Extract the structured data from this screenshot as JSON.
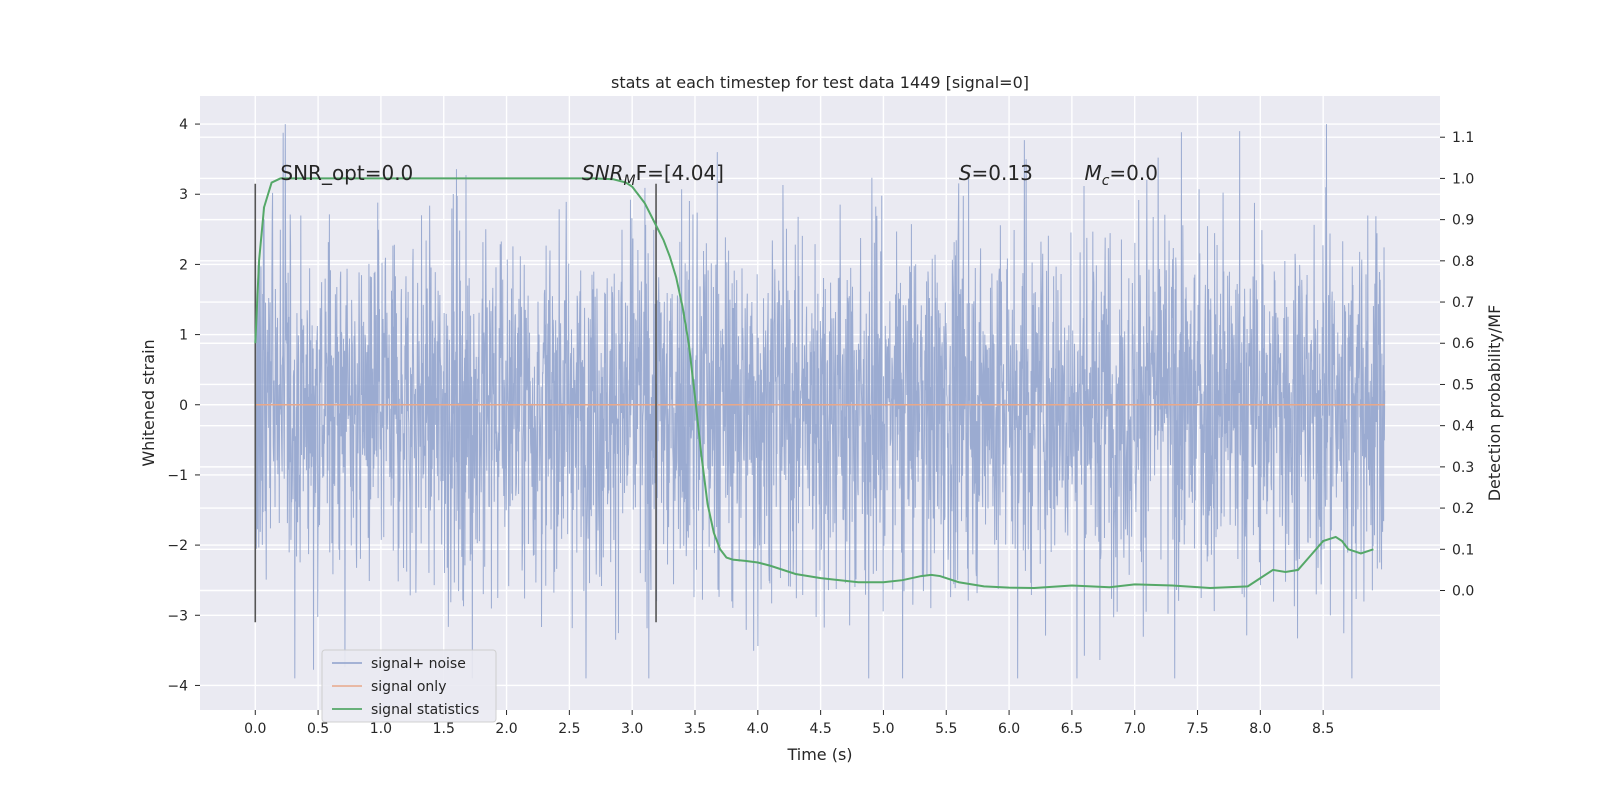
{
  "chart_data": {
    "type": "line",
    "title": "stats at each timestep for test data 1449 [signal=0]",
    "xlabel": "Time (s)",
    "ylabel": "Whitened strain",
    "ylabel_right": "Detection probability/MF",
    "xlim": [
      -0.44,
      9.43
    ],
    "ylim": [
      -4.35,
      4.4
    ],
    "ylim_right": [
      -0.29,
      1.2
    ],
    "xticks": [
      "0.0",
      "0.5",
      "1.0",
      "1.5",
      "2.0",
      "2.5",
      "3.0",
      "3.5",
      "4.0",
      "4.5",
      "5.0",
      "5.5",
      "6.0",
      "6.5",
      "7.0",
      "7.5",
      "8.0",
      "8.5"
    ],
    "yticks": [
      "−4",
      "−3",
      "−2",
      "−1",
      "0",
      "1",
      "2",
      "3",
      "4"
    ],
    "yticks_right": [
      "0.0",
      "0.1",
      "0.2",
      "0.3",
      "0.4",
      "0.5",
      "0.6",
      "0.7",
      "0.8",
      "0.9",
      "1.0",
      "1.1"
    ],
    "grid": true,
    "legend_position": "lower-left",
    "noise_band": {
      "t_start": 0.0,
      "t_end": 8.99,
      "typical_amplitude": 1.3,
      "min": -3.9,
      "max": 4.0
    },
    "vertical_markers": [
      {
        "x": 0.0,
        "y_range": [
          -3.1,
          3.15
        ]
      },
      {
        "x": 3.19,
        "y_range": [
          -3.1,
          3.15
        ]
      }
    ],
    "annotations": [
      {
        "text": "SNR_opt=0.0",
        "x": 0.2,
        "y": 3.2
      },
      {
        "text": "SNR",
        "sub": "M",
        "after": "F=[4.04]",
        "italic": true,
        "x": 2.6,
        "y": 3.2
      },
      {
        "text": "S",
        "after": "=0.13",
        "italic": true,
        "x": 5.6,
        "y": 3.2
      },
      {
        "text": "M",
        "sub": "c",
        "after": "=0.0",
        "italic": true,
        "x": 6.6,
        "y": 3.2
      }
    ],
    "series": [
      {
        "name": "signal+ noise",
        "color": "#8da0cb",
        "style": "dense-noise"
      },
      {
        "name": "signal only",
        "color": "#e8a88a",
        "x": [
          0.0,
          8.99
        ],
        "y": [
          0.0,
          0.0
        ]
      },
      {
        "name": "signal statistics",
        "color": "#55a868",
        "axis": "right",
        "x": [
          0.0,
          0.03,
          0.07,
          0.13,
          0.2,
          0.3,
          0.5,
          1.0,
          1.5,
          2.0,
          2.5,
          2.7,
          2.85,
          2.95,
          3.0,
          3.05,
          3.1,
          3.15,
          3.2,
          3.25,
          3.3,
          3.35,
          3.4,
          3.45,
          3.5,
          3.55,
          3.6,
          3.65,
          3.7,
          3.75,
          3.8,
          3.9,
          4.0,
          4.1,
          4.3,
          4.5,
          4.8,
          5.0,
          5.15,
          5.3,
          5.38,
          5.45,
          5.6,
          5.8,
          6.0,
          6.2,
          6.5,
          6.8,
          7.0,
          7.3,
          7.6,
          7.9,
          8.0,
          8.1,
          8.2,
          8.3,
          8.4,
          8.5,
          8.6,
          8.65,
          8.7,
          8.75,
          8.8,
          8.9
        ],
        "y": [
          0.6,
          0.8,
          0.93,
          0.99,
          1.0,
          1.0,
          1.0,
          1.0,
          1.0,
          1.0,
          1.0,
          1.0,
          0.998,
          0.99,
          0.98,
          0.96,
          0.94,
          0.91,
          0.88,
          0.85,
          0.81,
          0.76,
          0.69,
          0.6,
          0.47,
          0.33,
          0.21,
          0.14,
          0.1,
          0.08,
          0.075,
          0.072,
          0.068,
          0.06,
          0.04,
          0.03,
          0.02,
          0.02,
          0.025,
          0.035,
          0.038,
          0.035,
          0.02,
          0.01,
          0.007,
          0.006,
          0.012,
          0.008,
          0.015,
          0.012,
          0.006,
          0.01,
          0.03,
          0.05,
          0.045,
          0.05,
          0.085,
          0.12,
          0.13,
          0.12,
          0.1,
          0.095,
          0.09,
          0.1
        ]
      }
    ]
  }
}
